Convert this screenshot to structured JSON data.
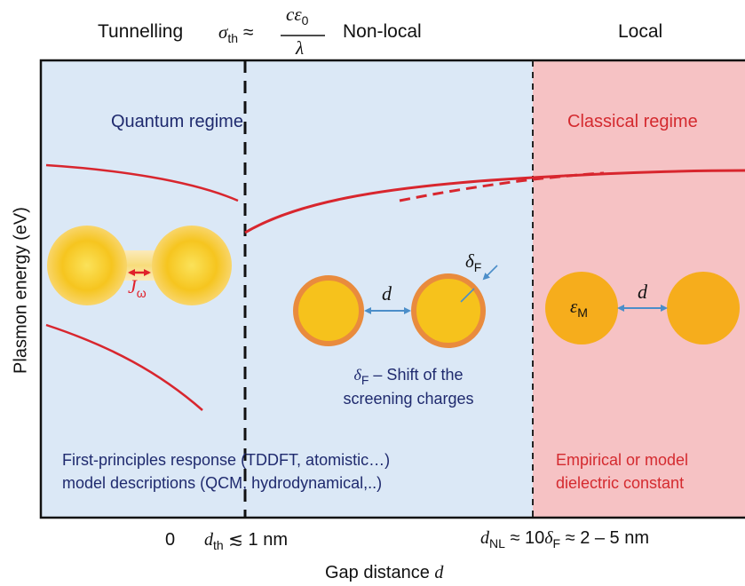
{
  "header": {
    "tunnelling": "Tunnelling",
    "sigma_formula": {
      "lhs": "σ",
      "lhs_sub": "th",
      "approx": "≈",
      "numerator": "cε",
      "numerator_sub": "0",
      "denominator": "λ"
    },
    "non_local": "Non-local",
    "local": "Local"
  },
  "regimes": {
    "quantum": "Quantum regime",
    "classical": "Classical regime"
  },
  "illustrations": {
    "current_symbol": "J",
    "current_sub": "ω",
    "gap_symbol": "d",
    "delta_symbol": "δ",
    "delta_sub": "F",
    "epsilon_symbol": "ε",
    "epsilon_sub": "M"
  },
  "captions": {
    "shift": {
      "symbol": "δ",
      "sub": "F",
      "line1_rest": " – Shift of the",
      "line2": "screening charges"
    },
    "quantum_methods": {
      "line1": "First-principles response (TDDFT, atomistic…)",
      "line2": "model descriptions (QCM, hydrodynamical,..)"
    },
    "classical_methods": {
      "line1": "Empirical or model",
      "line2": "dielectric constant"
    }
  },
  "axes": {
    "y_label": "Plasmon energy (eV)",
    "x_label": {
      "text": "Gap distance ",
      "symbol": "d"
    },
    "ticks": {
      "zero": "0",
      "d_th": {
        "symbol": "d",
        "sub": "th",
        "rest": " ≲ 1 nm"
      },
      "d_nl": {
        "symbol": "d",
        "sub": "NL",
        "mid": " ≈ 10",
        "delta": "δ",
        "delta_sub": "F",
        "rest": " ≈ 2 – 5 nm"
      }
    }
  },
  "colors": {
    "quantum_bg": "#dbe8f6",
    "classical_bg": "#f6c2c4",
    "curve": "#d8262e",
    "arrow": "#4b8ec9",
    "particle": "#f6c21c",
    "shell": "#e98b3d",
    "navy_text": "#1f2a6e",
    "red_text": "#d42a2f"
  }
}
